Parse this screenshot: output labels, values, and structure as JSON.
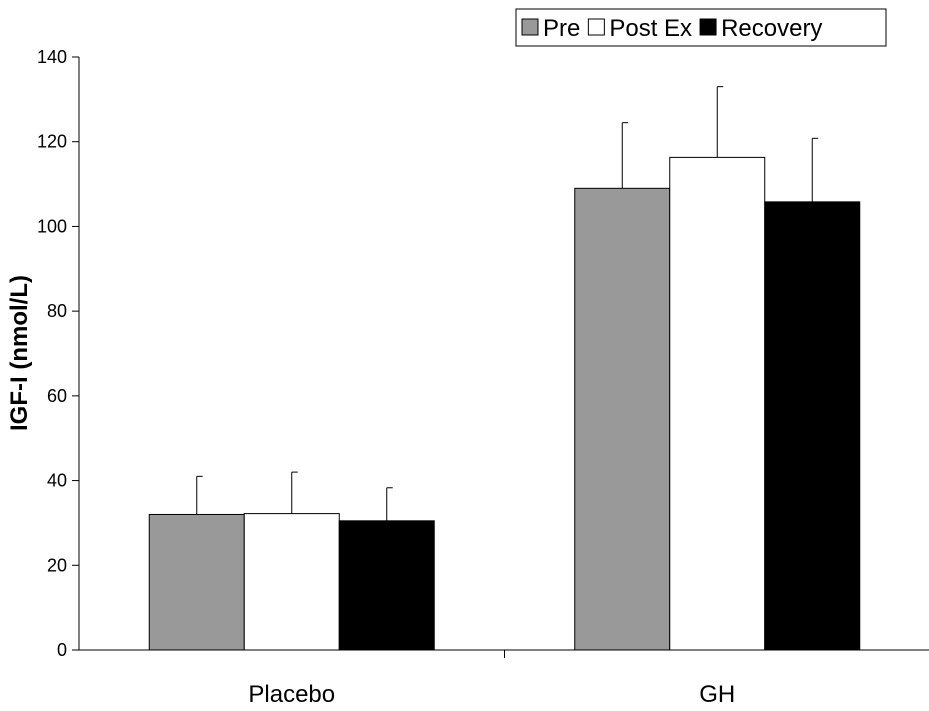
{
  "chart_data": {
    "type": "bar",
    "title": "",
    "xlabel": "",
    "ylabel": "IGF-I (nmol/L)",
    "categories": [
      "Placebo",
      "GH"
    ],
    "ylim": [
      0,
      140
    ],
    "yticks": [
      0,
      20,
      40,
      60,
      80,
      100,
      120,
      140
    ],
    "grid": false,
    "legend_position": "top-right",
    "series": [
      {
        "name": "Pre",
        "color": "#999999",
        "values": [
          32,
          109
        ],
        "errors": [
          9,
          15.5
        ]
      },
      {
        "name": "Post Ex",
        "color": "#ffffff",
        "values": [
          32.2,
          116.3
        ],
        "errors": [
          9.8,
          16.7
        ]
      },
      {
        "name": "Recovery",
        "color": "#000000",
        "values": [
          30.5,
          105.8
        ],
        "errors": [
          7.8,
          15
        ]
      }
    ]
  }
}
